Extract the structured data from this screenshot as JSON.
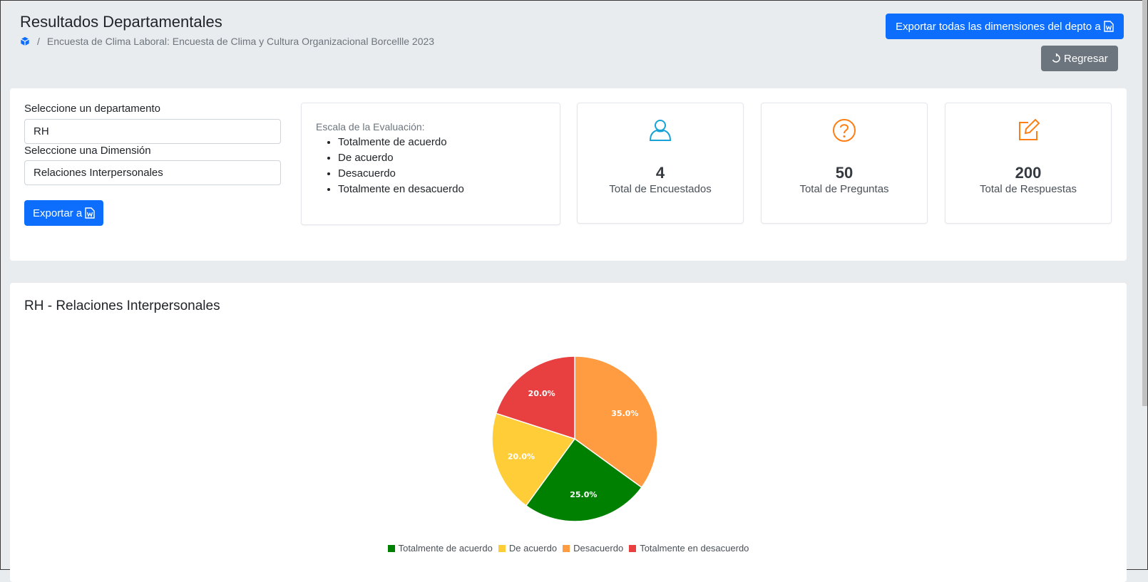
{
  "header": {
    "title": "Resultados Departamentales",
    "breadcrumb": "Encuesta de Clima Laboral: Encuesta de Clima y Cultura Organizacional Borcellle 2023",
    "breadcrumb_sep": "/",
    "export_all_label": "Exportar todas las dimensiones del depto a",
    "back_label": "Regresar"
  },
  "filters": {
    "department_label": "Seleccione un departamento",
    "department_value": "RH",
    "dimension_label": "Seleccione una Dimensión",
    "dimension_value": "Relaciones Interpersonales",
    "export_label": "Exportar a"
  },
  "scale": {
    "title": "Escala de la Evaluación:",
    "items": [
      "Totalmente de acuerdo",
      "De acuerdo",
      "Desacuerdo",
      "Totalmente en desacuerdo"
    ]
  },
  "stats": [
    {
      "value": "4",
      "label": "Total de Encuestados",
      "icon": "user-icon",
      "color": "#17a2d8"
    },
    {
      "value": "50",
      "label": "Total de Preguntas",
      "icon": "question-circle-icon",
      "color": "#fd7e14"
    },
    {
      "value": "200",
      "label": "Total de Respuestas",
      "icon": "edit-icon",
      "color": "#fd7e14"
    }
  ],
  "chart_data": {
    "type": "pie",
    "title": "RH - Relaciones Interpersonales",
    "categories": [
      "Totalmente de acuerdo",
      "De acuerdo",
      "Desacuerdo",
      "Totalmente en desacuerdo"
    ],
    "values": [
      25.0,
      20.0,
      35.0,
      20.0
    ],
    "labels": [
      "25.0%",
      "20.0%",
      "35.0%",
      "20.0%"
    ],
    "colors": [
      "#008000",
      "#ffcd38",
      "#ff9b40",
      "#e84040"
    ],
    "legend": "bottom"
  }
}
